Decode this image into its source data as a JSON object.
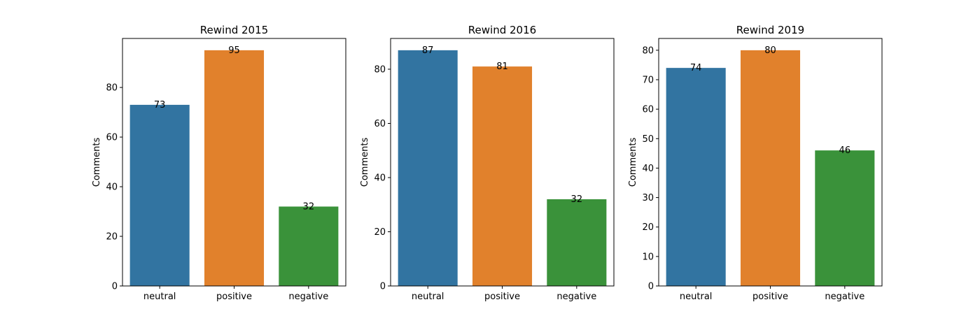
{
  "figure": {
    "background": "#ffffff"
  },
  "chart_data": [
    {
      "type": "bar",
      "title": "Rewind 2015",
      "xlabel": "",
      "ylabel": "Comments",
      "categories": [
        "neutral",
        "positive",
        "negative"
      ],
      "values": [
        73,
        95,
        32
      ],
      "colors": [
        "#3274a1",
        "#e1812c",
        "#3a923a"
      ],
      "ylim": [
        0,
        99.75
      ],
      "yticks": [
        0,
        20,
        40,
        60,
        80
      ],
      "grid": false,
      "legend": "none"
    },
    {
      "type": "bar",
      "title": "Rewind 2016",
      "xlabel": "",
      "ylabel": "Comments",
      "categories": [
        "neutral",
        "positive",
        "negative"
      ],
      "values": [
        87,
        81,
        32
      ],
      "colors": [
        "#3274a1",
        "#e1812c",
        "#3a923a"
      ],
      "ylim": [
        0,
        91.35
      ],
      "yticks": [
        0,
        20,
        40,
        60,
        80
      ],
      "grid": false,
      "legend": "none"
    },
    {
      "type": "bar",
      "title": "Rewind 2019",
      "xlabel": "",
      "ylabel": "Comments",
      "categories": [
        "neutral",
        "positive",
        "negative"
      ],
      "values": [
        74,
        80,
        46
      ],
      "colors": [
        "#3274a1",
        "#e1812c",
        "#3a923a"
      ],
      "ylim": [
        0,
        84
      ],
      "yticks": [
        0,
        10,
        20,
        30,
        40,
        50,
        60,
        70,
        80
      ],
      "grid": false,
      "legend": "none"
    }
  ]
}
